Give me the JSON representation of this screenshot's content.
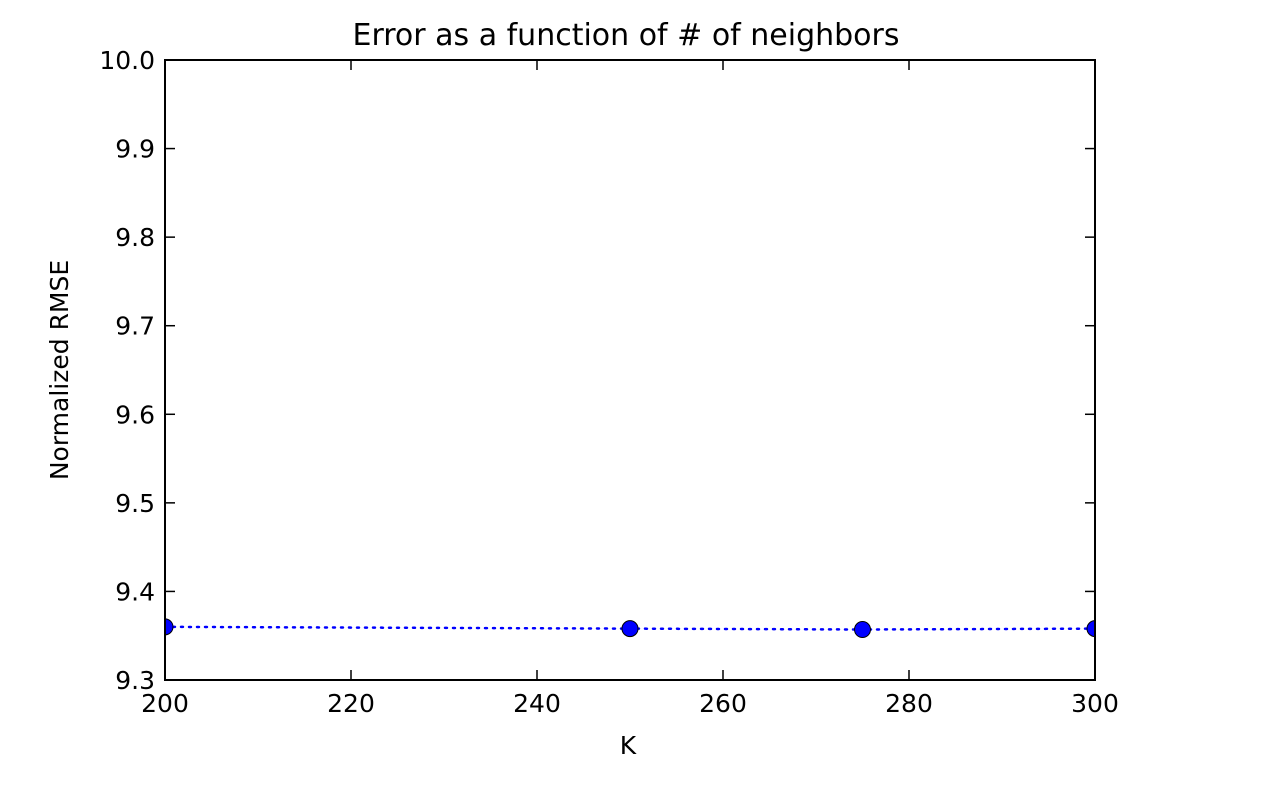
{
  "chart_data": {
    "type": "line",
    "title": "Error as a function of # of neighbors",
    "xlabel": "K",
    "ylabel": "Normalized RMSE",
    "xlim": [
      200,
      300
    ],
    "ylim": [
      9.3,
      10.0
    ],
    "x_ticks": [
      200,
      220,
      240,
      260,
      280,
      300
    ],
    "y_ticks": [
      9.3,
      9.4,
      9.5,
      9.6,
      9.7,
      9.8,
      9.9,
      10.0
    ],
    "x_tick_labels": [
      "200",
      "220",
      "240",
      "260",
      "280",
      "300"
    ],
    "y_tick_labels": [
      "9.3",
      "9.4",
      "9.5",
      "9.6",
      "9.7",
      "9.8",
      "9.9",
      "10.0"
    ],
    "grid": false,
    "series": [
      {
        "x": [
          200,
          250,
          275,
          300
        ],
        "y": [
          9.36,
          9.358,
          9.357,
          9.358
        ],
        "color": "#0000ff",
        "line_style": "dotted",
        "marker": "circle"
      }
    ]
  }
}
